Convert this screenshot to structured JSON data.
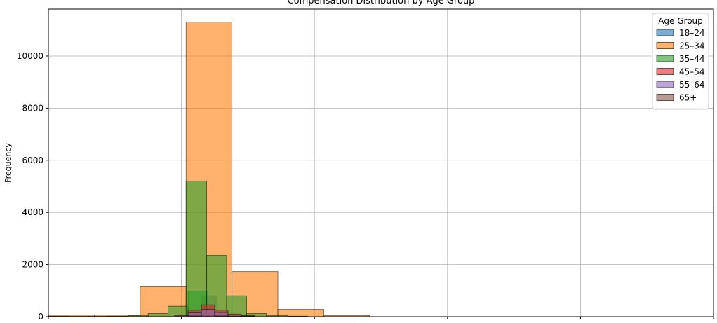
{
  "chart_data": {
    "type": "bar",
    "title": "Compensation Distribution by Age Group",
    "xlabel": "",
    "ylabel": "Frequency",
    "ylim": [
      0,
      11800
    ],
    "yticks": [
      0,
      2000,
      4000,
      6000,
      8000,
      10000
    ],
    "ytick_labels": [
      "0",
      "2000",
      "4000",
      "6000",
      "8000",
      "10000"
    ],
    "xlim": [
      0,
      500
    ],
    "grid": true,
    "legend": {
      "title": "Age Group",
      "placement": "top-right"
    },
    "series": [
      {
        "name": "18–24",
        "color": "#1f77b4",
        "bins": [
          [
            100,
            115,
            20
          ],
          [
            115,
            127,
            800
          ],
          [
            127,
            140,
            80
          ]
        ]
      },
      {
        "name": "25–34",
        "color": "#ff7f0e",
        "bins": [
          [
            0,
            34.5,
            60
          ],
          [
            34.5,
            69,
            60
          ],
          [
            69,
            103.5,
            1170
          ],
          [
            103.5,
            138,
            11300
          ],
          [
            138,
            172.5,
            1730
          ],
          [
            172.5,
            207,
            280
          ],
          [
            207,
            241.5,
            40
          ]
        ]
      },
      {
        "name": "35–44",
        "color": "#2ca02c",
        "bins": [
          [
            0,
            15,
            20
          ],
          [
            15,
            30,
            15
          ],
          [
            30,
            45,
            15
          ],
          [
            45,
            60,
            20
          ],
          [
            60,
            75,
            40
          ],
          [
            75,
            90,
            120
          ],
          [
            90,
            105,
            400
          ],
          [
            105,
            120,
            980
          ],
          [
            103.5,
            119,
            5200
          ],
          [
            119,
            134,
            2350
          ],
          [
            134,
            149,
            800
          ],
          [
            149,
            164,
            120
          ],
          [
            164,
            180,
            40
          ],
          [
            180,
            195,
            20
          ]
        ]
      },
      {
        "name": "45–54",
        "color": "#d62728",
        "bins": [
          [
            95,
            105,
            60
          ],
          [
            105,
            115,
            250
          ],
          [
            115,
            125,
            450
          ],
          [
            125,
            135,
            250
          ],
          [
            135,
            145,
            100
          ],
          [
            145,
            155,
            40
          ]
        ]
      },
      {
        "name": "55–64",
        "color": "#9467bd",
        "bins": [
          [
            95,
            105,
            40
          ],
          [
            105,
            115,
            150
          ],
          [
            115,
            125,
            280
          ],
          [
            125,
            135,
            160
          ],
          [
            135,
            145,
            60
          ],
          [
            145,
            155,
            25
          ]
        ]
      },
      {
        "name": "65+",
        "color": "#8c564b",
        "bins": [
          [
            105,
            115,
            30
          ],
          [
            115,
            125,
            60
          ],
          [
            125,
            135,
            30
          ],
          [
            135,
            145,
            15
          ]
        ]
      }
    ]
  }
}
